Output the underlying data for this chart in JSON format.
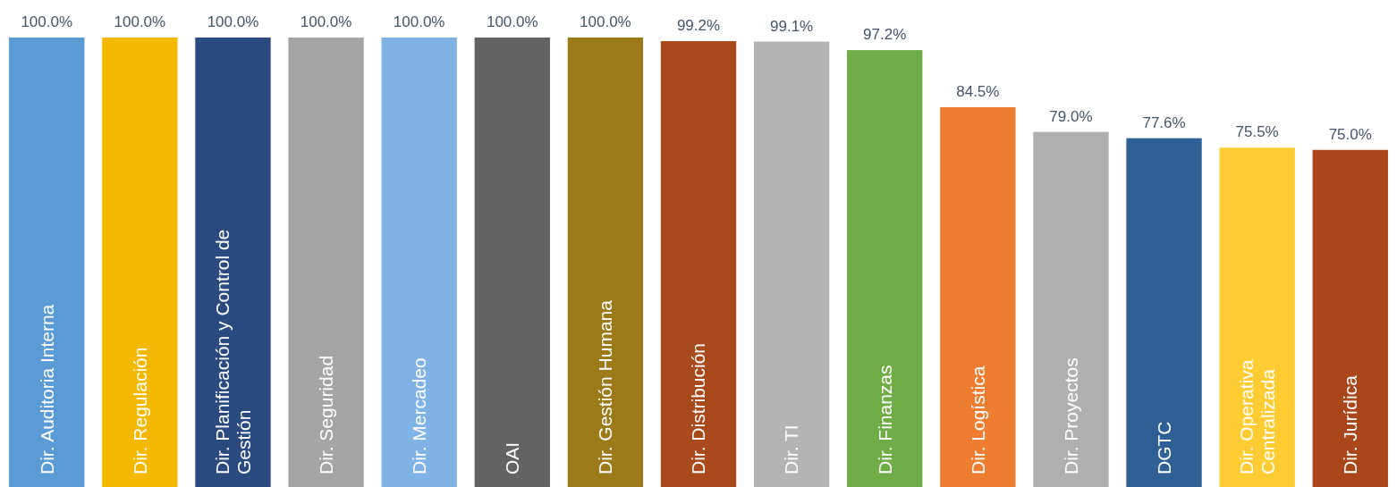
{
  "chart_data": {
    "type": "bar",
    "categories": [
      "Dir. Auditoria Interna",
      "Dir. Regulación",
      "Dir. Planificación y Control de Gestión",
      "Dir. Seguridad",
      "Dir. Mercadeo",
      "OAI",
      "Dir. Gestión Humana",
      "Dir. Distribución",
      "Dir. TI",
      "Dir. Finanzas",
      "Dir. Logística",
      "Dir. Proyectos",
      "DGTC",
      "Dir. Operativa Centralizada",
      "Dir. Jurídica"
    ],
    "values": [
      100,
      100,
      100,
      100,
      100,
      100,
      100,
      99.2,
      99.1,
      97.2,
      84.5,
      79.0,
      77.6,
      75.5,
      75.0
    ],
    "value_labels": [
      "100.0%",
      "100.0%",
      "100.0%",
      "100.0%",
      "100.0%",
      "100.0%",
      "100.0%",
      "99.2%",
      "99.1%",
      "97.2%",
      "84.5%",
      "79.0%",
      "77.6%",
      "75.5%",
      "75.0%"
    ],
    "colors": [
      "#5b9bd5",
      "#f5b800",
      "#2a4a80",
      "#a5a5a5",
      "#7fb2e5",
      "#636363",
      "#9c7a1a",
      "#a84a1c",
      "#b4b4b4",
      "#70ad47",
      "#ed7d31",
      "#b0b0b0",
      "#2e6096",
      "#ffcc33",
      "#a9471b"
    ]
  }
}
